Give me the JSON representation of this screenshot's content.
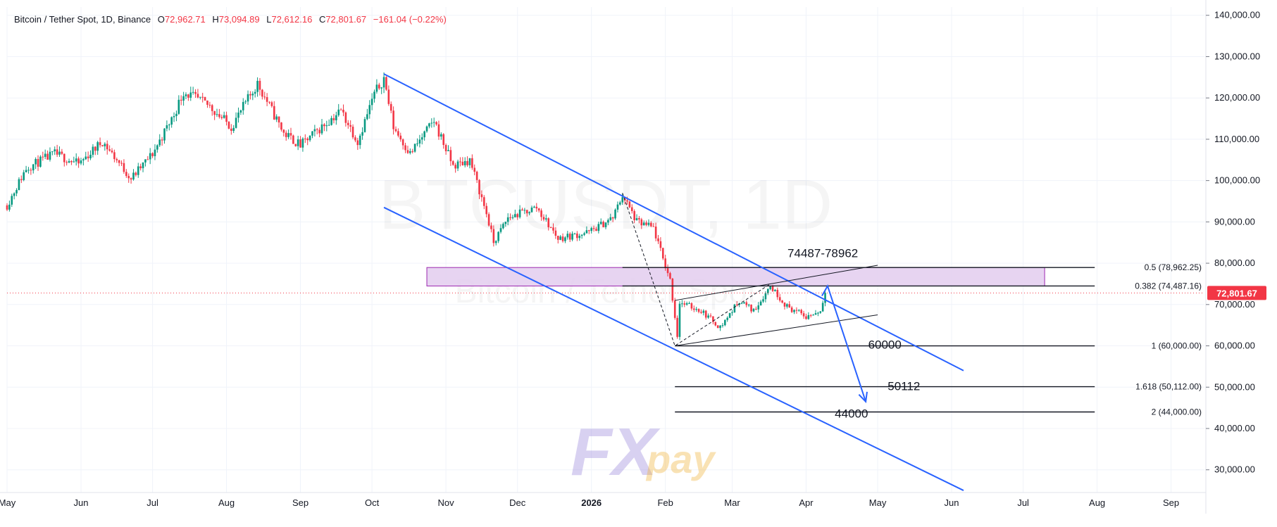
{
  "header": {
    "symbol": "Bitcoin / Tether Spot, 1D, Binance",
    "o_label": "O",
    "o_value": "72,962.71",
    "h_label": "H",
    "h_value": "73,094.89",
    "l_label": "L",
    "l_value": "72,612.16",
    "c_label": "C",
    "c_value": "72,801.67",
    "change": "−161.04 (−0.22%)"
  },
  "watermark": {
    "main": "BTCUSDT, 1D",
    "sub": "Bitcoin / Tether Spot"
  },
  "logo": {
    "text_fx": "FX",
    "text_pay": "pay"
  },
  "chart_data": {
    "type": "candlestick",
    "title": "Bitcoin / Tether Spot, 1D, Binance",
    "y_ticks": [
      "140,000.00",
      "130,000.00",
      "120,000.00",
      "110,000.00",
      "100,000.00",
      "90,000.00",
      "80,000.00",
      "70,000.00",
      "60,000.00",
      "50,000.00",
      "40,000.00",
      "30,000.00"
    ],
    "y_tick_values": [
      140000,
      130000,
      120000,
      110000,
      100000,
      90000,
      80000,
      70000,
      60000,
      50000,
      40000,
      30000
    ],
    "ylim": [
      24500,
      142000
    ],
    "x_ticks": [
      "May",
      "Jun",
      "Jul",
      "Aug",
      "Sep",
      "Oct",
      "Nov",
      "Dec",
      "2026",
      "Feb",
      "Mar",
      "Apr",
      "May",
      "Jun",
      "Jul",
      "Aug",
      "Sep"
    ],
    "x_tick_dates": [
      "2025-05-01",
      "2025-06-01",
      "2025-07-01",
      "2025-08-01",
      "2025-09-01",
      "2025-10-01",
      "2025-11-01",
      "2025-12-01",
      "2026-01-01",
      "2026-02-01",
      "2026-03-01",
      "2026-04-01",
      "2026-05-01",
      "2026-06-01",
      "2026-07-01",
      "2026-08-01",
      "2026-09-01"
    ],
    "xlim": [
      "2025-05-01",
      "2026-09-15"
    ],
    "current_price": {
      "value": 72801.67,
      "label": "72,801.67"
    },
    "price_path": [
      [
        "2025-05-01",
        94000
      ],
      [
        "2025-05-09",
        103000
      ],
      [
        "2025-05-21",
        106500
      ],
      [
        "2025-05-31",
        104000
      ],
      [
        "2025-06-10",
        109500
      ],
      [
        "2025-06-22",
        100500
      ],
      [
        "2025-07-01",
        106500
      ],
      [
        "2025-07-10",
        116000
      ],
      [
        "2025-07-14",
        121500
      ],
      [
        "2025-07-25",
        118000
      ],
      [
        "2025-08-03",
        113000
      ],
      [
        "2025-08-14",
        123500
      ],
      [
        "2025-08-25",
        111500
      ],
      [
        "2025-09-01",
        108500
      ],
      [
        "2025-09-18",
        117000
      ],
      [
        "2025-09-25",
        109500
      ],
      [
        "2025-10-02",
        121000
      ],
      [
        "2025-10-06",
        124800
      ],
      [
        "2025-10-10",
        113000
      ],
      [
        "2025-10-17",
        106500
      ],
      [
        "2025-10-27",
        114500
      ],
      [
        "2025-11-04",
        103500
      ],
      [
        "2025-11-11",
        105000
      ],
      [
        "2025-11-18",
        92000
      ],
      [
        "2025-11-21",
        85000
      ],
      [
        "2025-11-27",
        91000
      ],
      [
        "2025-12-09",
        93500
      ],
      [
        "2025-12-18",
        86000
      ],
      [
        "2025-12-31",
        87500
      ],
      [
        "2026-01-10",
        91000
      ],
      [
        "2026-01-14",
        96500
      ],
      [
        "2026-01-20",
        90000
      ],
      [
        "2026-01-27",
        88500
      ],
      [
        "2026-01-31",
        81000
      ],
      [
        "2026-02-03",
        76000
      ],
      [
        "2026-02-06",
        62500
      ],
      [
        "2026-02-07",
        70500
      ],
      [
        "2026-02-16",
        68500
      ],
      [
        "2026-02-24",
        64500
      ],
      [
        "2026-03-04",
        71000
      ],
      [
        "2026-03-10",
        68500
      ],
      [
        "2026-03-17",
        74500
      ],
      [
        "2026-03-24",
        69500
      ],
      [
        "2026-04-01",
        67000
      ],
      [
        "2026-04-07",
        68500
      ],
      [
        "2026-04-09",
        72801.67
      ]
    ],
    "fib_levels": [
      {
        "label": "0.5 (78,962.25)",
        "value": 78962.25,
        "from": "2026-01-14",
        "to": "2026-07-31"
      },
      {
        "label": "0.382 (74,487.16)",
        "value": 74487.16,
        "from": "2026-01-14",
        "to": "2026-07-31"
      },
      {
        "label": "1 (60,000.00)",
        "value": 60000,
        "from": "2026-02-05",
        "to": "2026-07-31"
      },
      {
        "label": "1.618 (50,112.00)",
        "value": 50112,
        "from": "2026-02-05",
        "to": "2026-07-31"
      },
      {
        "label": "2 (44,000.00)",
        "value": 44000,
        "from": "2026-02-05",
        "to": "2026-07-31"
      }
    ],
    "zone": {
      "from": "2025-10-24",
      "to": "2026-07-10",
      "low": 74487,
      "high": 78962
    },
    "annotations": [
      {
        "text": "74487-78962",
        "x": "2026-04-08",
        "y": 81500
      },
      {
        "text": "60000",
        "x": "2026-05-04",
        "y": 59300
      },
      {
        "text": "50112",
        "x": "2026-05-12",
        "y": 49300
      },
      {
        "text": "44000",
        "x": "2026-04-20",
        "y": 42600
      }
    ],
    "channel_upper": [
      [
        "2025-10-06",
        125800
      ],
      [
        "2026-06-06",
        54000
      ]
    ],
    "channel_lower": [
      [
        "2025-10-06",
        93500
      ],
      [
        "2026-06-06",
        25000
      ]
    ],
    "wedge_upper": [
      [
        "2026-02-05",
        71000
      ],
      [
        "2026-05-01",
        79500
      ]
    ],
    "wedge_lower": [
      [
        "2026-02-05",
        60000
      ],
      [
        "2026-05-01",
        67500
      ]
    ],
    "zigzag": [
      [
        "2026-01-14",
        97000
      ],
      [
        "2026-02-05",
        60000
      ],
      [
        "2026-03-17",
        75000
      ]
    ],
    "projection": [
      [
        "2026-04-10",
        74487
      ],
      [
        "2026-04-26",
        46500
      ]
    ],
    "colors": {
      "up": "#089981",
      "down": "#f23645",
      "channel": "#2962ff",
      "zone_fill": "#e3cdef",
      "zone_stroke": "#9c27b0",
      "price_label": "#f23645",
      "grid": "#f0f3fa",
      "axis_text": "#131722"
    }
  }
}
